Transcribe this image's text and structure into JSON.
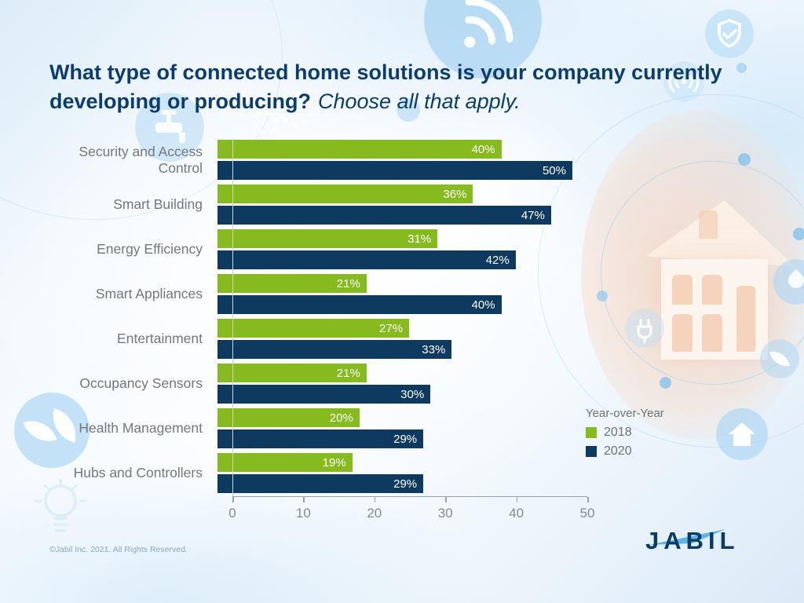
{
  "title": {
    "question": "What type of connected home solutions is your company currently developing or producing?",
    "instruction": "Choose all that apply."
  },
  "chart_data": {
    "type": "bar",
    "orientation": "horizontal",
    "title": "What type of connected home solutions is your company currently developing or producing? Choose all that apply.",
    "categories": [
      "Security and Access Control",
      "Smart Building",
      "Energy Efficiency",
      "Smart Appliances",
      "Entertainment",
      "Occupancy Sensors",
      "Health Management",
      "Hubs and Controllers"
    ],
    "series": [
      {
        "name": "2018",
        "color": "#85bb1f",
        "values": [
          40,
          36,
          31,
          21,
          27,
          21,
          20,
          19
        ]
      },
      {
        "name": "2020",
        "color": "#0e3a5f",
        "values": [
          50,
          47,
          42,
          40,
          33,
          30,
          29,
          29
        ]
      }
    ],
    "value_suffix": "%",
    "xlabel": "",
    "ylabel": "",
    "xlim": [
      0,
      50
    ],
    "x_ticks": [
      0,
      10,
      20,
      30,
      40,
      50
    ],
    "grid": false,
    "legend_position": "right",
    "value_labels": "inside-end, white"
  },
  "legend": {
    "title": "Year-over-Year",
    "items": [
      {
        "label": "2018",
        "color": "#85bb1f"
      },
      {
        "label": "2020",
        "color": "#0e3a5f"
      }
    ]
  },
  "footer": {
    "copyright": "©Jabil Inc. 2021. All Rights Reserved.",
    "logo": "JABIL"
  },
  "colors": {
    "title_navy": "#0d3d6c",
    "bar_green": "#85bb1f",
    "bar_navy": "#0e3a5f",
    "label_gray": "#76777a",
    "axis_gray": "#85898d",
    "logo_navy": "#0b3a64",
    "logo_swoosh": "#5eb3e7",
    "background_blue": "#dcecf8"
  },
  "decorations": [
    "wifi-icon",
    "shield-check-icon",
    "broadcast-icon",
    "faucet-icon",
    "gear-icon",
    "leaf-icon",
    "lightbulb-icon",
    "plug-icon",
    "droplet-icon",
    "house-icon",
    "hand-holding-house-photo",
    "network-circles"
  ]
}
